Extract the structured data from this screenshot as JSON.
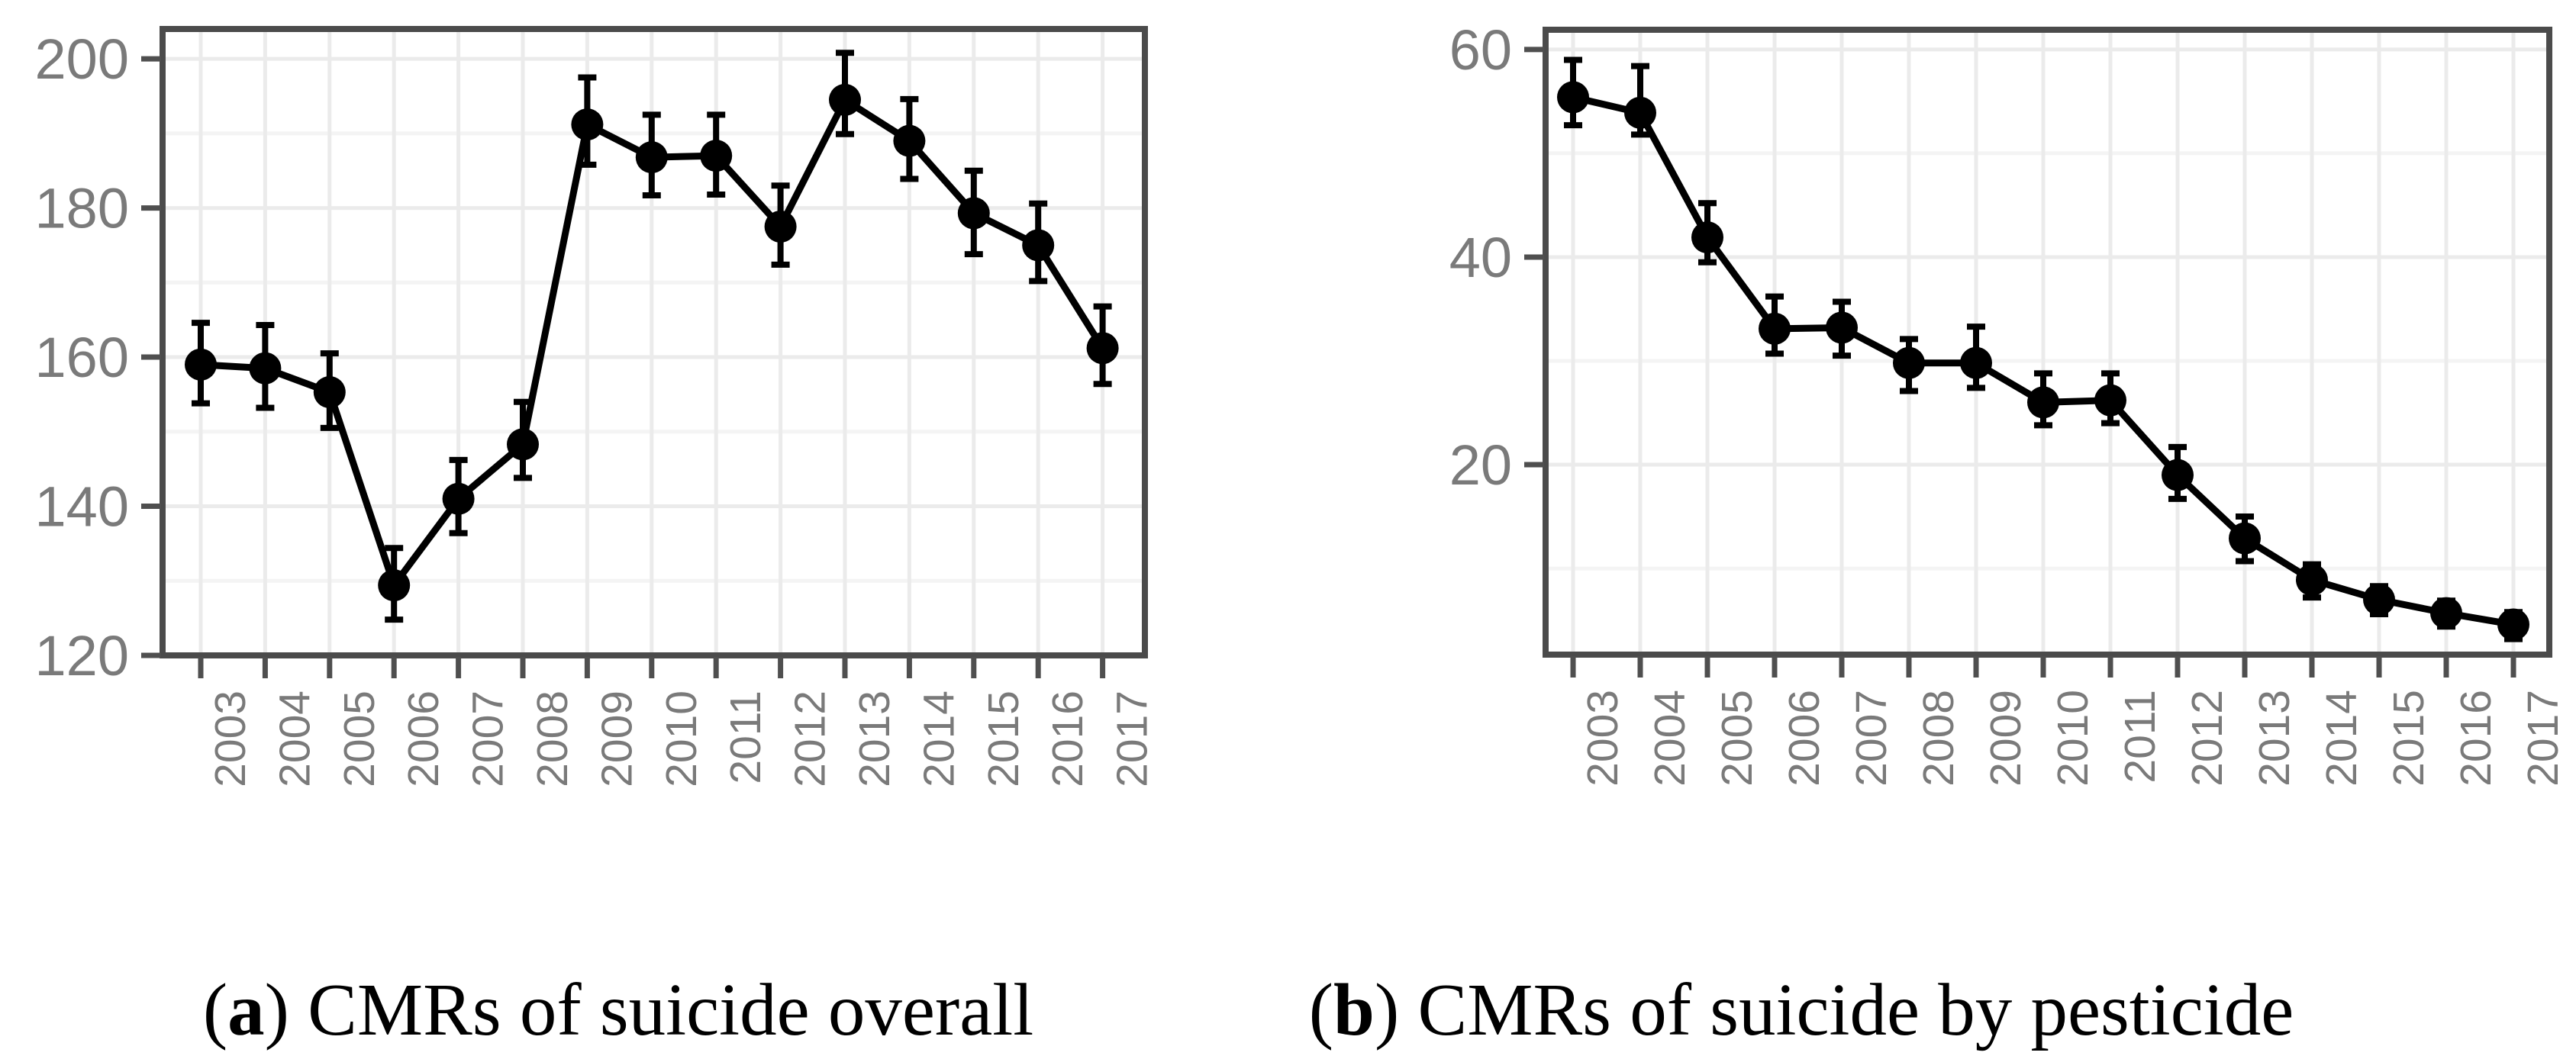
{
  "figure": {
    "background": "#ffffff",
    "captions": [
      {
        "open": "(",
        "letter": "a",
        "rest": ") CMRs of suicide overall"
      },
      {
        "open": "(",
        "letter": "b",
        "rest": ") CMRs of suicide by pesticide"
      }
    ]
  },
  "style": {
    "point_color": "#000000",
    "line_color": "#000000",
    "errorbar_color": "#000000",
    "panel_border_color": "#4b4b4b",
    "tick_color": "#4f4f4f",
    "axis_text_color": "#7a7a7a",
    "grid_major_color": "#ebebeb",
    "grid_minor_color": "#f4f4f4",
    "panel_background": "#ffffff"
  },
  "chart_data": [
    {
      "type": "line",
      "title": "(a) CMRs of suicide overall",
      "xlabel": "",
      "ylabel": "",
      "legend": "none",
      "grid": "major+minor",
      "categories": [
        2003,
        2004,
        2005,
        2006,
        2007,
        2008,
        2009,
        2010,
        2011,
        2012,
        2013,
        2014,
        2015,
        2016,
        2017
      ],
      "series": [
        {
          "name": "CMR overall",
          "values": [
            159.0,
            158.5,
            155.3,
            129.4,
            141.0,
            148.3,
            191.2,
            186.8,
            187.0,
            177.5,
            194.5,
            189.0,
            179.3,
            175.0,
            161.2
          ],
          "ci_low": [
            153.8,
            153.2,
            150.5,
            124.8,
            136.4,
            143.8,
            185.8,
            181.7,
            181.8,
            172.4,
            189.9,
            183.9,
            173.8,
            170.2,
            156.4
          ],
          "ci_high": [
            164.6,
            164.3,
            160.5,
            134.4,
            146.2,
            154.0,
            197.5,
            192.5,
            192.5,
            183.0,
            200.8,
            194.6,
            185.0,
            180.6,
            166.8
          ]
        }
      ],
      "ylim": [
        120,
        204
      ],
      "yticks": [
        120,
        140,
        160,
        180,
        200
      ],
      "yticks_minor": [
        130,
        150,
        170,
        190
      ],
      "xtick_labels": [
        "2003",
        "2004",
        "2005",
        "2006",
        "2007",
        "2008",
        "2009",
        "2010",
        "2011",
        "2012",
        "2013",
        "2014",
        "2015",
        "2016",
        "2017"
      ]
    },
    {
      "type": "line",
      "title": "(b) CMRs of suicide by pesticide",
      "xlabel": "",
      "ylabel": "",
      "legend": "none",
      "grid": "major+minor",
      "categories": [
        2003,
        2004,
        2005,
        2006,
        2007,
        2008,
        2009,
        2010,
        2011,
        2012,
        2013,
        2014,
        2015,
        2016,
        2017
      ],
      "series": [
        {
          "name": "CMR by pesticide",
          "values": [
            55.4,
            53.9,
            41.9,
            33.1,
            33.2,
            29.8,
            29.8,
            26.0,
            26.2,
            19.0,
            12.9,
            8.9,
            7.0,
            5.7,
            4.6
          ],
          "ci_low": [
            52.7,
            51.8,
            39.5,
            30.7,
            30.5,
            27.1,
            27.4,
            23.8,
            24.0,
            16.7,
            10.7,
            7.2,
            5.6,
            4.4,
            3.2
          ],
          "ci_high": [
            59.0,
            58.4,
            45.2,
            36.2,
            35.7,
            32.1,
            33.3,
            28.8,
            28.8,
            21.7,
            15.0,
            10.4,
            8.3,
            6.9,
            5.8
          ]
        }
      ],
      "ylim": [
        1.7,
        61.9
      ],
      "yticks": [
        20,
        40,
        60
      ],
      "yticks_minor": [
        10,
        30,
        50
      ],
      "xtick_labels": [
        "2003",
        "2004",
        "2005",
        "2006",
        "2007",
        "2008",
        "2009",
        "2010",
        "2011",
        "2012",
        "2013",
        "2014",
        "2015",
        "2016",
        "2017"
      ]
    }
  ]
}
